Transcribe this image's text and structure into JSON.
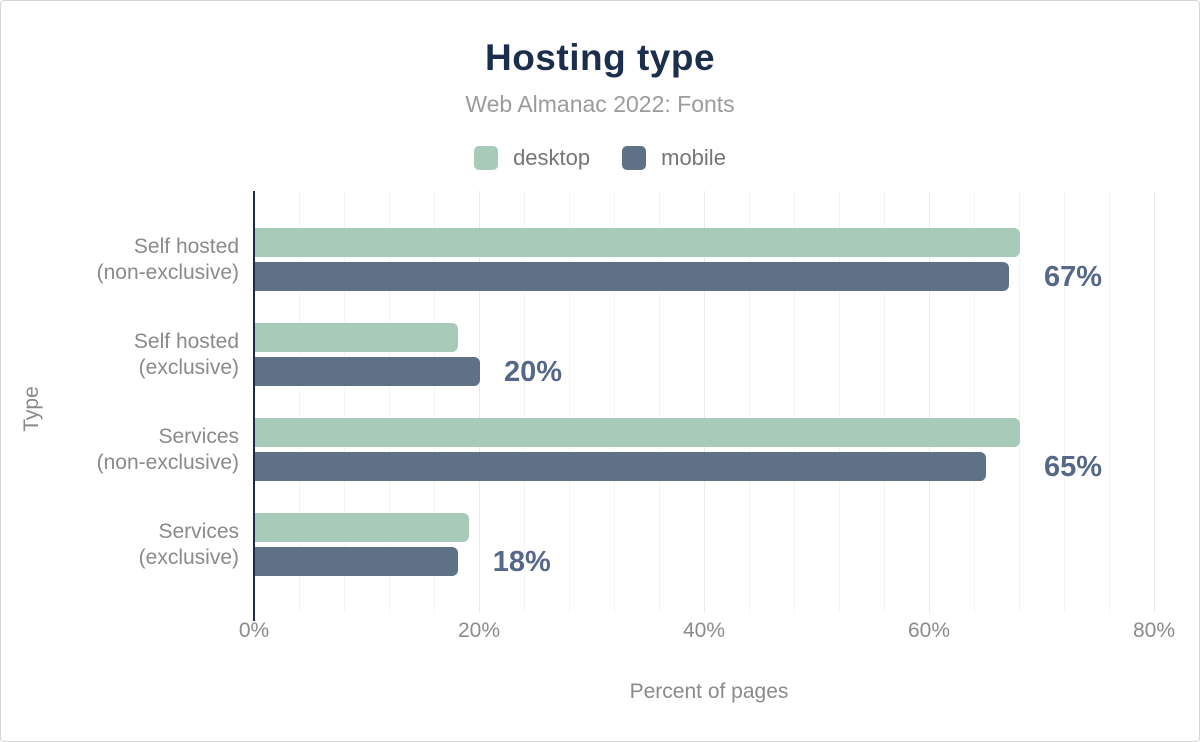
{
  "figure": {
    "title": "Hosting type",
    "subtitle": "Web Almanac 2022: Fonts",
    "x_axis_title": "Percent of pages",
    "y_axis_title": "Type"
  },
  "chart_data": {
    "type": "bar",
    "orientation": "horizontal",
    "title": "Hosting type",
    "subtitle": "Web Almanac 2022: Fonts",
    "xlabel": "Percent of pages",
    "ylabel": "Type",
    "categories": [
      "Self hosted (non-exclusive)",
      "Self hosted (exclusive)",
      "Services (non-exclusive)",
      "Services (exclusive)"
    ],
    "category_lines": [
      [
        "Self hosted",
        "(non-exclusive)"
      ],
      [
        "Self hosted",
        "(exclusive)"
      ],
      [
        "Services",
        "(non-exclusive)"
      ],
      [
        "Services",
        "(exclusive)"
      ]
    ],
    "series": [
      {
        "name": "desktop",
        "color": "#a8cab8",
        "values": [
          68,
          18,
          68,
          19
        ]
      },
      {
        "name": "mobile",
        "color": "#5e7187",
        "values": [
          67,
          20,
          65,
          18
        ]
      }
    ],
    "annotations": {
      "labeled_series": "mobile",
      "labels": [
        "67%",
        "20%",
        "65%",
        "18%"
      ]
    },
    "xlim": [
      0,
      81
    ],
    "x_tick_labels": [
      "0%",
      "20%",
      "40%",
      "60%",
      "80%"
    ],
    "x_tick_values": [
      0,
      20,
      40,
      60,
      80
    ],
    "grid": {
      "show": true,
      "minor_step_pct": 4,
      "major_step_pct": 20
    },
    "legend_position": "top-center"
  },
  "colors": {
    "title": "#1c2e4e",
    "subtitle": "#9b9b9b",
    "axis_line": "#1b2b4a",
    "desktop_bar": "#a8cab8",
    "mobile_bar": "#5e7187",
    "value_label": "#56688a",
    "gray_text": "#8a8a8a",
    "gridline": "#f4f4f4"
  }
}
